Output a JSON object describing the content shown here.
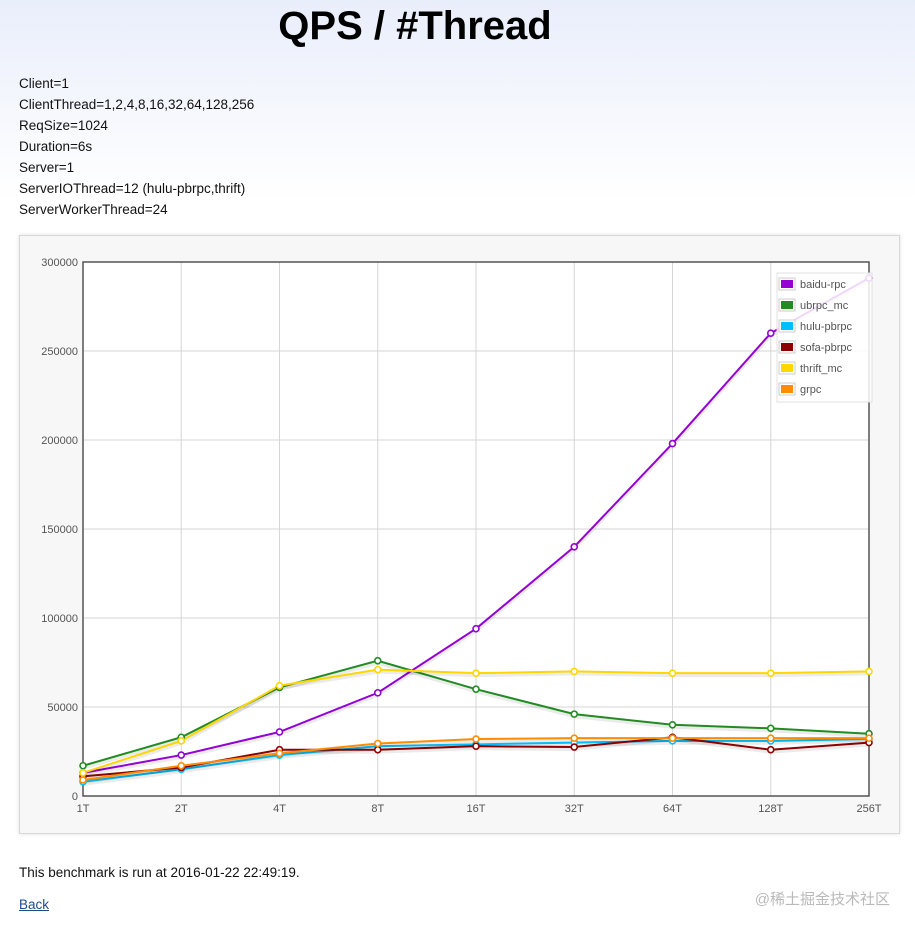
{
  "page": {
    "title": "QPS / #Thread",
    "params": [
      "Client=1",
      "ClientThread=1,2,4,8,16,32,64,128,256",
      "ReqSize=1024",
      "Duration=6s",
      "Server=1",
      "ServerIOThread=12 (hulu-pbrpc,thrift)",
      "ServerWorkerThread=24"
    ],
    "footer": "This benchmark is run at 2016-01-22 22:49:19.",
    "back_label": "Back",
    "watermark": "@稀土掘金技术社区"
  },
  "chart_data": {
    "type": "line",
    "title": "",
    "xlabel": "",
    "ylabel": "",
    "categories": [
      "1T",
      "2T",
      "4T",
      "8T",
      "16T",
      "32T",
      "64T",
      "128T",
      "256T"
    ],
    "ylim": [
      0,
      300000
    ],
    "yticks": [
      0,
      50000,
      100000,
      150000,
      200000,
      250000,
      300000
    ],
    "grid": true,
    "legend_position": "top-right",
    "series": [
      {
        "name": "baidu-rpc",
        "color": "#9400d3",
        "values": [
          13000,
          23000,
          36000,
          58000,
          94000,
          140000,
          198000,
          260000,
          291000
        ]
      },
      {
        "name": "ubrpc_mc",
        "color": "#228b22",
        "values": [
          17000,
          33000,
          61000,
          76000,
          60000,
          46000,
          40000,
          38000,
          35000
        ]
      },
      {
        "name": "hulu-pbrpc",
        "color": "#00bfff",
        "values": [
          8000,
          15000,
          23000,
          28000,
          29000,
          30000,
          31000,
          31000,
          32000
        ]
      },
      {
        "name": "sofa-pbrpc",
        "color": "#8b0000",
        "values": [
          11000,
          16000,
          26000,
          26000,
          28000,
          27500,
          33000,
          26000,
          30000
        ]
      },
      {
        "name": "thrift_mc",
        "color": "#ffd700",
        "values": [
          13000,
          31000,
          62000,
          71000,
          69000,
          70000,
          69000,
          69000,
          70000
        ]
      },
      {
        "name": "grpc",
        "color": "#ff8c00",
        "values": [
          9000,
          17000,
          24000,
          29500,
          32000,
          32500,
          32500,
          32500,
          32500
        ]
      }
    ]
  }
}
